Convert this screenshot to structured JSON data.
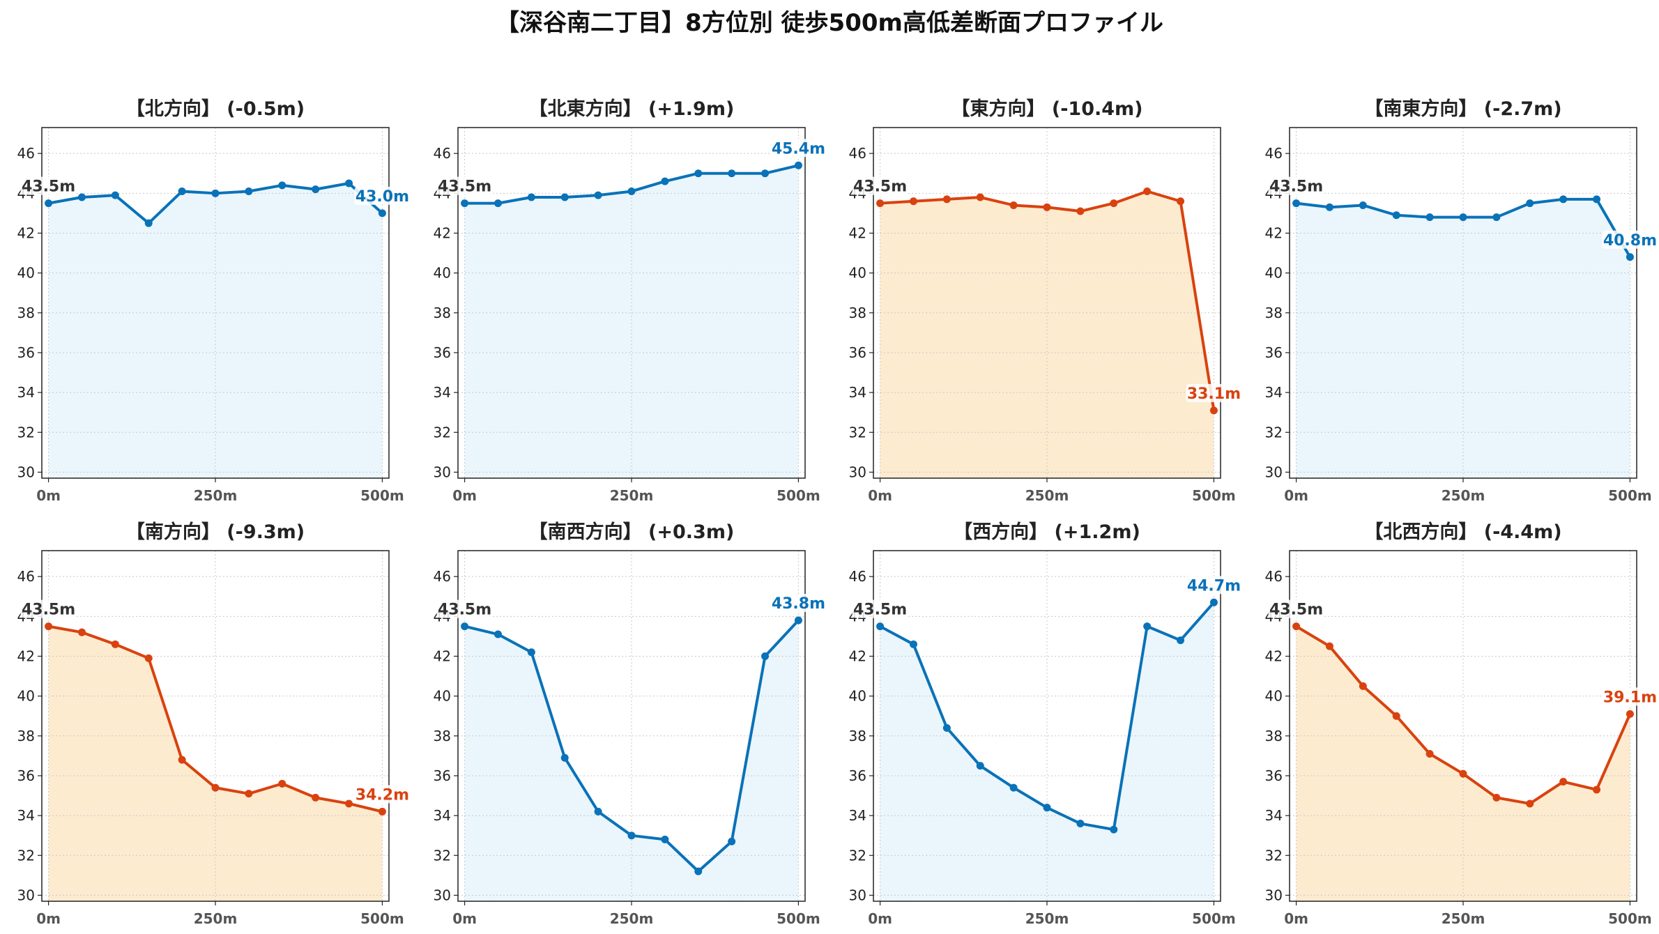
{
  "title": "【深谷南二丁目】8方位別 徒歩500m高低差断面プロファイル",
  "colors": {
    "up_line": "#0a72b8",
    "up_fill": "#eaf6fc",
    "down_line": "#d9420f",
    "down_fill": "#fdebcf",
    "start_label": "#333333",
    "grid": "#c8c8c8"
  },
  "chart_data": [
    {
      "type": "area",
      "title": "【北方向】 (-0.5m)",
      "trend": "up",
      "x": [
        0,
        50,
        100,
        150,
        200,
        250,
        300,
        350,
        400,
        450,
        500
      ],
      "y": [
        43.5,
        43.8,
        43.9,
        42.5,
        44.1,
        44.0,
        44.1,
        44.4,
        44.2,
        44.5,
        43.0
      ],
      "start_label": "43.5m",
      "end_label": "43.0m",
      "ylim": [
        29.7,
        47.3
      ],
      "xlim": [
        -10,
        510
      ],
      "yticks": [
        30,
        32,
        34,
        36,
        38,
        40,
        42,
        44,
        46
      ],
      "xticks": [
        0,
        250,
        500
      ],
      "xtick_labels": [
        "0m",
        "250m",
        "500m"
      ],
      "grid": true
    },
    {
      "type": "area",
      "title": "【北東方向】 (+1.9m)",
      "trend": "up",
      "x": [
        0,
        50,
        100,
        150,
        200,
        250,
        300,
        350,
        400,
        450,
        500
      ],
      "y": [
        43.5,
        43.5,
        43.8,
        43.8,
        43.9,
        44.1,
        44.6,
        45.0,
        45.0,
        45.0,
        45.4
      ],
      "start_label": "43.5m",
      "end_label": "45.4m",
      "ylim": [
        29.7,
        47.3
      ],
      "xlim": [
        -10,
        510
      ],
      "yticks": [
        30,
        32,
        34,
        36,
        38,
        40,
        42,
        44,
        46
      ],
      "xticks": [
        0,
        250,
        500
      ],
      "xtick_labels": [
        "0m",
        "250m",
        "500m"
      ],
      "grid": true
    },
    {
      "type": "area",
      "title": "【東方向】 (-10.4m)",
      "trend": "down",
      "x": [
        0,
        50,
        100,
        150,
        200,
        250,
        300,
        350,
        400,
        450,
        500
      ],
      "y": [
        43.5,
        43.6,
        43.7,
        43.8,
        43.4,
        43.3,
        43.1,
        43.5,
        44.1,
        43.6,
        33.1
      ],
      "start_label": "43.5m",
      "end_label": "33.1m",
      "ylim": [
        29.7,
        47.3
      ],
      "xlim": [
        -10,
        510
      ],
      "yticks": [
        30,
        32,
        34,
        36,
        38,
        40,
        42,
        44,
        46
      ],
      "xticks": [
        0,
        250,
        500
      ],
      "xtick_labels": [
        "0m",
        "250m",
        "500m"
      ],
      "grid": true
    },
    {
      "type": "area",
      "title": "【南東方向】 (-2.7m)",
      "trend": "up",
      "x": [
        0,
        50,
        100,
        150,
        200,
        250,
        300,
        350,
        400,
        450,
        500
      ],
      "y": [
        43.5,
        43.3,
        43.4,
        42.9,
        42.8,
        42.8,
        42.8,
        43.5,
        43.7,
        43.7,
        40.8
      ],
      "start_label": "43.5m",
      "end_label": "40.8m",
      "ylim": [
        29.7,
        47.3
      ],
      "xlim": [
        -10,
        510
      ],
      "yticks": [
        30,
        32,
        34,
        36,
        38,
        40,
        42,
        44,
        46
      ],
      "xticks": [
        0,
        250,
        500
      ],
      "xtick_labels": [
        "0m",
        "250m",
        "500m"
      ],
      "grid": true
    },
    {
      "type": "area",
      "title": "【南方向】 (-9.3m)",
      "trend": "down",
      "x": [
        0,
        50,
        100,
        150,
        200,
        250,
        300,
        350,
        400,
        450,
        500
      ],
      "y": [
        43.5,
        43.2,
        42.6,
        41.9,
        36.8,
        35.4,
        35.1,
        35.6,
        34.9,
        34.6,
        34.2
      ],
      "start_label": "43.5m",
      "end_label": "34.2m",
      "ylim": [
        29.7,
        47.3
      ],
      "xlim": [
        -10,
        510
      ],
      "yticks": [
        30,
        32,
        34,
        36,
        38,
        40,
        42,
        44,
        46
      ],
      "xticks": [
        0,
        250,
        500
      ],
      "xtick_labels": [
        "0m",
        "250m",
        "500m"
      ],
      "grid": true
    },
    {
      "type": "area",
      "title": "【南西方向】 (+0.3m)",
      "trend": "up",
      "x": [
        0,
        50,
        100,
        150,
        200,
        250,
        300,
        350,
        400,
        450,
        500
      ],
      "y": [
        43.5,
        43.1,
        42.2,
        36.9,
        34.2,
        33.0,
        32.8,
        31.2,
        32.7,
        42.0,
        43.8
      ],
      "start_label": "43.5m",
      "end_label": "43.8m",
      "ylim": [
        29.7,
        47.3
      ],
      "xlim": [
        -10,
        510
      ],
      "yticks": [
        30,
        32,
        34,
        36,
        38,
        40,
        42,
        44,
        46
      ],
      "xticks": [
        0,
        250,
        500
      ],
      "xtick_labels": [
        "0m",
        "250m",
        "500m"
      ],
      "grid": true
    },
    {
      "type": "area",
      "title": "【西方向】 (+1.2m)",
      "trend": "up",
      "x": [
        0,
        50,
        100,
        150,
        200,
        250,
        300,
        350,
        400,
        450,
        500
      ],
      "y": [
        43.5,
        42.6,
        38.4,
        36.5,
        35.4,
        34.4,
        33.6,
        33.3,
        43.5,
        42.8,
        44.7
      ],
      "start_label": "43.5m",
      "end_label": "44.7m",
      "ylim": [
        29.7,
        47.3
      ],
      "xlim": [
        -10,
        510
      ],
      "yticks": [
        30,
        32,
        34,
        36,
        38,
        40,
        42,
        44,
        46
      ],
      "xticks": [
        0,
        250,
        500
      ],
      "xtick_labels": [
        "0m",
        "250m",
        "500m"
      ],
      "grid": true
    },
    {
      "type": "area",
      "title": "【北西方向】 (-4.4m)",
      "trend": "down",
      "x": [
        0,
        50,
        100,
        150,
        200,
        250,
        300,
        350,
        400,
        450,
        500
      ],
      "y": [
        43.5,
        42.5,
        40.5,
        39.0,
        37.1,
        36.1,
        34.9,
        34.6,
        35.7,
        35.3,
        39.1
      ],
      "start_label": "43.5m",
      "end_label": "39.1m",
      "ylim": [
        29.7,
        47.3
      ],
      "xlim": [
        -10,
        510
      ],
      "yticks": [
        30,
        32,
        34,
        36,
        38,
        40,
        42,
        44,
        46
      ],
      "xticks": [
        0,
        250,
        500
      ],
      "xtick_labels": [
        "0m",
        "250m",
        "500m"
      ],
      "grid": true
    }
  ]
}
